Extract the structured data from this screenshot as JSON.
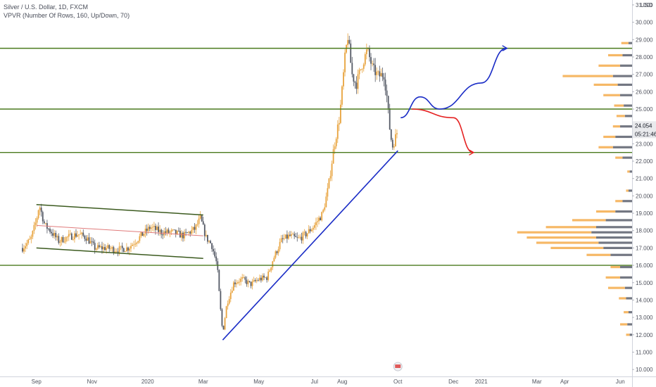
{
  "legend": {
    "line1": "Silver / U.S. Dollar, 1D, FXCM",
    "line2": "VPVR (Number Of Rows, 160, Up/Down, 70)"
  },
  "currency_label": "USD",
  "chart_data": {
    "type": "candlestick",
    "title": "Silver / U.S. Dollar, 1D, FXCM",
    "indicator": "VPVR (Number Of Rows, 160, Up/Down, 70)",
    "ylim": [
      9.6,
      31.2
    ],
    "y_ticks": [
      "31.000",
      "30.000",
      "29.000",
      "28.000",
      "27.000",
      "26.000",
      "25.000",
      "24.000",
      "23.000",
      "22.000",
      "21.000",
      "20.000",
      "19.000",
      "18.000",
      "17.000",
      "16.000",
      "15.000",
      "14.000",
      "13.000",
      "12.000",
      "11.000",
      "10.000"
    ],
    "x_ticks": [
      {
        "label": "Sep",
        "t": 0.5
      },
      {
        "label": "Nov",
        "t": 2.5
      },
      {
        "label": "2020",
        "t": 4.5
      },
      {
        "label": "Mar",
        "t": 6.5
      },
      {
        "label": "May",
        "t": 8.5
      },
      {
        "label": "Jul",
        "t": 10.5
      },
      {
        "label": "Aug",
        "t": 11.5
      },
      {
        "label": "Oct",
        "t": 13.5
      },
      {
        "label": "Dec",
        "t": 15.5
      },
      {
        "label": "2021",
        "t": 16.5
      },
      {
        "label": "Mar",
        "t": 18.5
      },
      {
        "label": "Apr",
        "t": 19.5
      },
      {
        "label": "Jun",
        "t": 21.5
      }
    ],
    "price_path": [
      [
        0,
        17.0
      ],
      [
        0.3,
        17.5
      ],
      [
        0.5,
        18.6
      ],
      [
        0.6,
        19.5
      ],
      [
        0.8,
        18.3
      ],
      [
        1.0,
        18.0
      ],
      [
        1.3,
        17.4
      ],
      [
        1.6,
        17.6
      ],
      [
        2.0,
        17.8
      ],
      [
        2.3,
        17.6
      ],
      [
        2.6,
        17.0
      ],
      [
        3.0,
        17.0
      ],
      [
        3.4,
        16.9
      ],
      [
        3.8,
        17.0
      ],
      [
        4.2,
        17.6
      ],
      [
        4.6,
        18.2
      ],
      [
        5.0,
        17.9
      ],
      [
        5.4,
        17.9
      ],
      [
        5.8,
        17.7
      ],
      [
        6.2,
        18.1
      ],
      [
        6.4,
        18.7
      ],
      [
        6.6,
        17.6
      ],
      [
        6.8,
        17.2
      ],
      [
        7.0,
        16.0
      ],
      [
        7.1,
        13.8
      ],
      [
        7.2,
        12.1
      ],
      [
        7.35,
        13.8
      ],
      [
        7.6,
        15.0
      ],
      [
        7.9,
        15.2
      ],
      [
        8.2,
        14.9
      ],
      [
        8.5,
        15.2
      ],
      [
        8.8,
        15.3
      ],
      [
        9.0,
        16.3
      ],
      [
        9.3,
        17.4
      ],
      [
        9.6,
        17.7
      ],
      [
        9.9,
        17.5
      ],
      [
        10.2,
        17.8
      ],
      [
        10.5,
        18.3
      ],
      [
        10.8,
        19.0
      ],
      [
        11.0,
        20.5
      ],
      [
        11.2,
        22.8
      ],
      [
        11.4,
        24.5
      ],
      [
        11.5,
        26.2
      ],
      [
        11.6,
        28.0
      ],
      [
        11.7,
        29.2
      ],
      [
        11.85,
        27.0
      ],
      [
        12.0,
        26.4
      ],
      [
        12.2,
        27.5
      ],
      [
        12.4,
        28.4
      ],
      [
        12.6,
        27.3
      ],
      [
        12.8,
        26.9
      ],
      [
        13.0,
        27.0
      ],
      [
        13.1,
        25.8
      ],
      [
        13.2,
        24.0
      ],
      [
        13.3,
        22.8
      ],
      [
        13.4,
        23.3
      ],
      [
        13.5,
        23.8
      ]
    ],
    "horizontal_levels": [
      "28.500",
      "25.000",
      "22.500",
      "16.000"
    ],
    "last_price": "24.054",
    "countdown": "05:21:46",
    "channel": {
      "upper": [
        [
          0.5,
          19.5
        ],
        [
          6.5,
          18.9
        ]
      ],
      "lower": [
        [
          0.5,
          17.0
        ],
        [
          6.5,
          16.4
        ]
      ],
      "mid": [
        [
          0.5,
          18.3
        ],
        [
          6.5,
          17.7
        ]
      ]
    },
    "trendline": [
      [
        7.2,
        11.7
      ],
      [
        13.5,
        22.6
      ]
    ],
    "projection_up": [
      [
        13.6,
        24.5
      ],
      [
        14.3,
        25.7
      ],
      [
        15.0,
        25.0
      ],
      [
        16.5,
        26.5
      ],
      [
        17.4,
        28.5
      ]
    ],
    "projection_down": [
      [
        14.0,
        25.0
      ],
      [
        15.5,
        24.5
      ],
      [
        16.2,
        22.5
      ]
    ],
    "volume_profile": [
      {
        "price": 28.8,
        "up": 0.06,
        "down": 0.03
      },
      {
        "price": 28.1,
        "up": 0.12,
        "down": 0.08
      },
      {
        "price": 27.5,
        "up": 0.18,
        "down": 0.1
      },
      {
        "price": 26.9,
        "up": 0.42,
        "down": 0.16
      },
      {
        "price": 26.4,
        "up": 0.2,
        "down": 0.12
      },
      {
        "price": 25.8,
        "up": 0.14,
        "down": 0.1
      },
      {
        "price": 25.2,
        "up": 0.08,
        "down": 0.07
      },
      {
        "price": 24.6,
        "up": 0.07,
        "down": 0.06
      },
      {
        "price": 24.0,
        "up": 0.06,
        "down": 0.1
      },
      {
        "price": 23.4,
        "up": 0.1,
        "down": 0.14
      },
      {
        "price": 22.8,
        "up": 0.12,
        "down": 0.16
      },
      {
        "price": 22.2,
        "up": 0.06,
        "down": 0.08
      },
      {
        "price": 21.4,
        "up": 0.02,
        "down": 0.02
      },
      {
        "price": 20.3,
        "up": 0.02,
        "down": 0.03
      },
      {
        "price": 19.7,
        "up": 0.06,
        "down": 0.08
      },
      {
        "price": 19.1,
        "up": 0.16,
        "down": 0.14
      },
      {
        "price": 18.6,
        "up": 0.28,
        "down": 0.22
      },
      {
        "price": 18.2,
        "up": 0.42,
        "down": 0.3
      },
      {
        "price": 17.9,
        "up": 0.62,
        "down": 0.34
      },
      {
        "price": 17.6,
        "up": 0.58,
        "down": 0.3
      },
      {
        "price": 17.3,
        "up": 0.52,
        "down": 0.28
      },
      {
        "price": 17.0,
        "up": 0.44,
        "down": 0.24
      },
      {
        "price": 16.6,
        "up": 0.2,
        "down": 0.18
      },
      {
        "price": 15.9,
        "up": 0.08,
        "down": 0.1
      },
      {
        "price": 15.3,
        "up": 0.12,
        "down": 0.1
      },
      {
        "price": 14.7,
        "up": 0.14,
        "down": 0.06
      },
      {
        "price": 14.1,
        "up": 0.06,
        "down": 0.05
      },
      {
        "price": 13.3,
        "up": 0.04,
        "down": 0.03
      },
      {
        "price": 12.6,
        "up": 0.06,
        "down": 0.04
      },
      {
        "price": 12.0,
        "up": 0.03,
        "down": 0.02
      }
    ]
  },
  "colors": {
    "candle_up": "#e8a33d",
    "candle_down": "#555a66",
    "level": "#4a7a1e",
    "trendline": "#1a2cc6",
    "projection_up": "#1a2cc6",
    "projection_down": "#e52222",
    "channel": "#3b5a1e",
    "channel_mid": "#e07a7a",
    "vp_up": "#f4ac4b",
    "vp_down": "#5b5f6c"
  }
}
